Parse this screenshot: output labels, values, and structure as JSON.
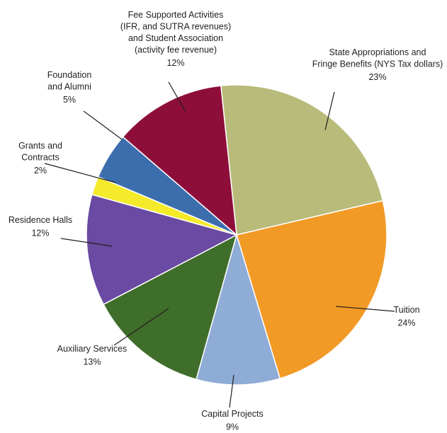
{
  "chart_data": {
    "type": "pie",
    "title": "",
    "slices": [
      {
        "lines": [
          "State Appropriations and",
          "Fringe Benefits (NYS Tax dollars)"
        ],
        "percent_label": "23%",
        "value": 23,
        "color": "#b8bb7a"
      },
      {
        "lines": [
          "Tuition"
        ],
        "percent_label": "24%",
        "value": 24,
        "color": "#f29a26"
      },
      {
        "lines": [
          "Capital Projects"
        ],
        "percent_label": "9%",
        "value": 9,
        "color": "#8facd6"
      },
      {
        "lines": [
          "Auxiliary Services"
        ],
        "percent_label": "13%",
        "value": 13,
        "color": "#3f6d2a"
      },
      {
        "lines": [
          "Residence Halls"
        ],
        "percent_label": "12%",
        "value": 12,
        "color": "#6a4aa2"
      },
      {
        "lines": [
          "Grants and",
          "Contracts"
        ],
        "percent_label": "2%",
        "value": 2,
        "color": "#f4ea2a"
      },
      {
        "lines": [
          "Foundation",
          "and Alumni"
        ],
        "percent_label": "5%",
        "value": 5,
        "color": "#3c6ead"
      },
      {
        "lines": [
          "Fee Supported Activities",
          "(IFR, and SUTRA revenues)",
          "and Student Association",
          "(activity fee revenue)"
        ],
        "percent_label": "12%",
        "value": 12,
        "color": "#8e0e3a"
      }
    ]
  }
}
